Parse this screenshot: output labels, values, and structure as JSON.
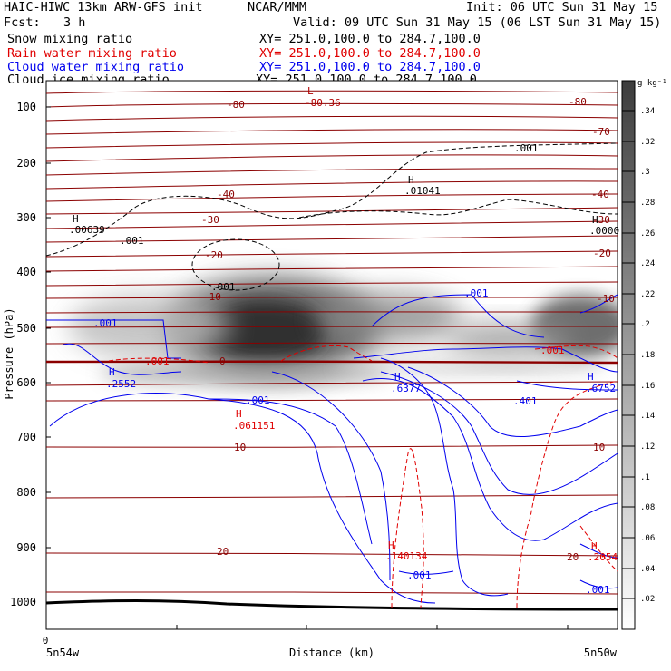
{
  "header": {
    "title": "HAIC-HIWC 13km ARW-GFS init",
    "center": "NCAR/MMM",
    "init": "Init: 06 UTC Sun 31 May 15",
    "fcst_label": "Fcst:",
    "fcst_value": "3 h",
    "valid": "Valid: 09 UTC Sun 31 May 15 (06 LST Sun 31 May 15)"
  },
  "fields": [
    {
      "name": "Snow mixing ratio",
      "xy": "XY= 251.0,100.0 to 284.7,100.0",
      "color": "#000000"
    },
    {
      "name": "Rain water mixing ratio",
      "xy": "XY= 251.0,100.0 to 284.7,100.0",
      "color": "#e00000"
    },
    {
      "name": "Cloud water mixing ratio",
      "xy": "XY= 251.0,100.0 to 284.7,100.0",
      "color": "#0000ee"
    },
    {
      "name": "Cloud ice mixing ratio",
      "xy": "XY= 251.0,100.0 to 284.7,100.0",
      "color": "#000000"
    }
  ],
  "chart_data": {
    "type": "heatmap",
    "xlabel": "Distance (km)",
    "ylabel": "Pressure (hPa)",
    "x_ticks": [
      "0"
    ],
    "x_end_labels": [
      "5n54w",
      "5n50w"
    ],
    "y_ticks": [
      100,
      200,
      300,
      400,
      500,
      600,
      700,
      800,
      900,
      1000
    ],
    "ylim": [
      1050,
      70
    ],
    "colorbar": {
      "unit": "g kg⁻¹",
      "ticks": [
        ".34",
        ".32",
        ".3",
        ".28",
        ".26",
        ".24",
        ".22",
        ".2",
        ".18",
        ".16",
        ".14",
        ".12",
        ".1",
        ".08",
        ".06",
        ".04",
        ".02"
      ],
      "range": [
        0,
        0.36
      ]
    },
    "temperature_labels": [
      "-80",
      "-80",
      "-70",
      "-40",
      "-40",
      "-30",
      "-30",
      "-20",
      "-20",
      "-10",
      "-10",
      "0",
      "10",
      "10",
      "20",
      "20"
    ],
    "extrema": [
      {
        "type": "L",
        "value": "-80.36",
        "color": "#b00000"
      },
      {
        "type": "H",
        "value": ".01041",
        "color": "#000000"
      },
      {
        "type": "H",
        "value": ".00639",
        "color": "#000000"
      },
      {
        "type": "H",
        "value": ".0000",
        "color": "#000000"
      },
      {
        "type": "H",
        "value": ".2552",
        "color": "#0000ee"
      },
      {
        "type": "H",
        "value": ".6377",
        "color": "#0000ee"
      },
      {
        "type": "H",
        "value": ".6752",
        "color": "#0000ee"
      },
      {
        "type": "H",
        "value": ".061151",
        "color": "#e00000"
      },
      {
        "type": "H",
        "value": ".140134",
        "color": "#e00000"
      },
      {
        "type": "H",
        "value": ".2054",
        "color": "#e00000"
      }
    ],
    "contour_labels": {
      "snow": [
        ".001",
        ".001",
        ".001"
      ],
      "cloud_water": [
        ".001",
        ".001",
        ".001",
        ".401",
        ".001",
        ".001"
      ],
      "rain": [
        ".001",
        ".001"
      ]
    }
  }
}
